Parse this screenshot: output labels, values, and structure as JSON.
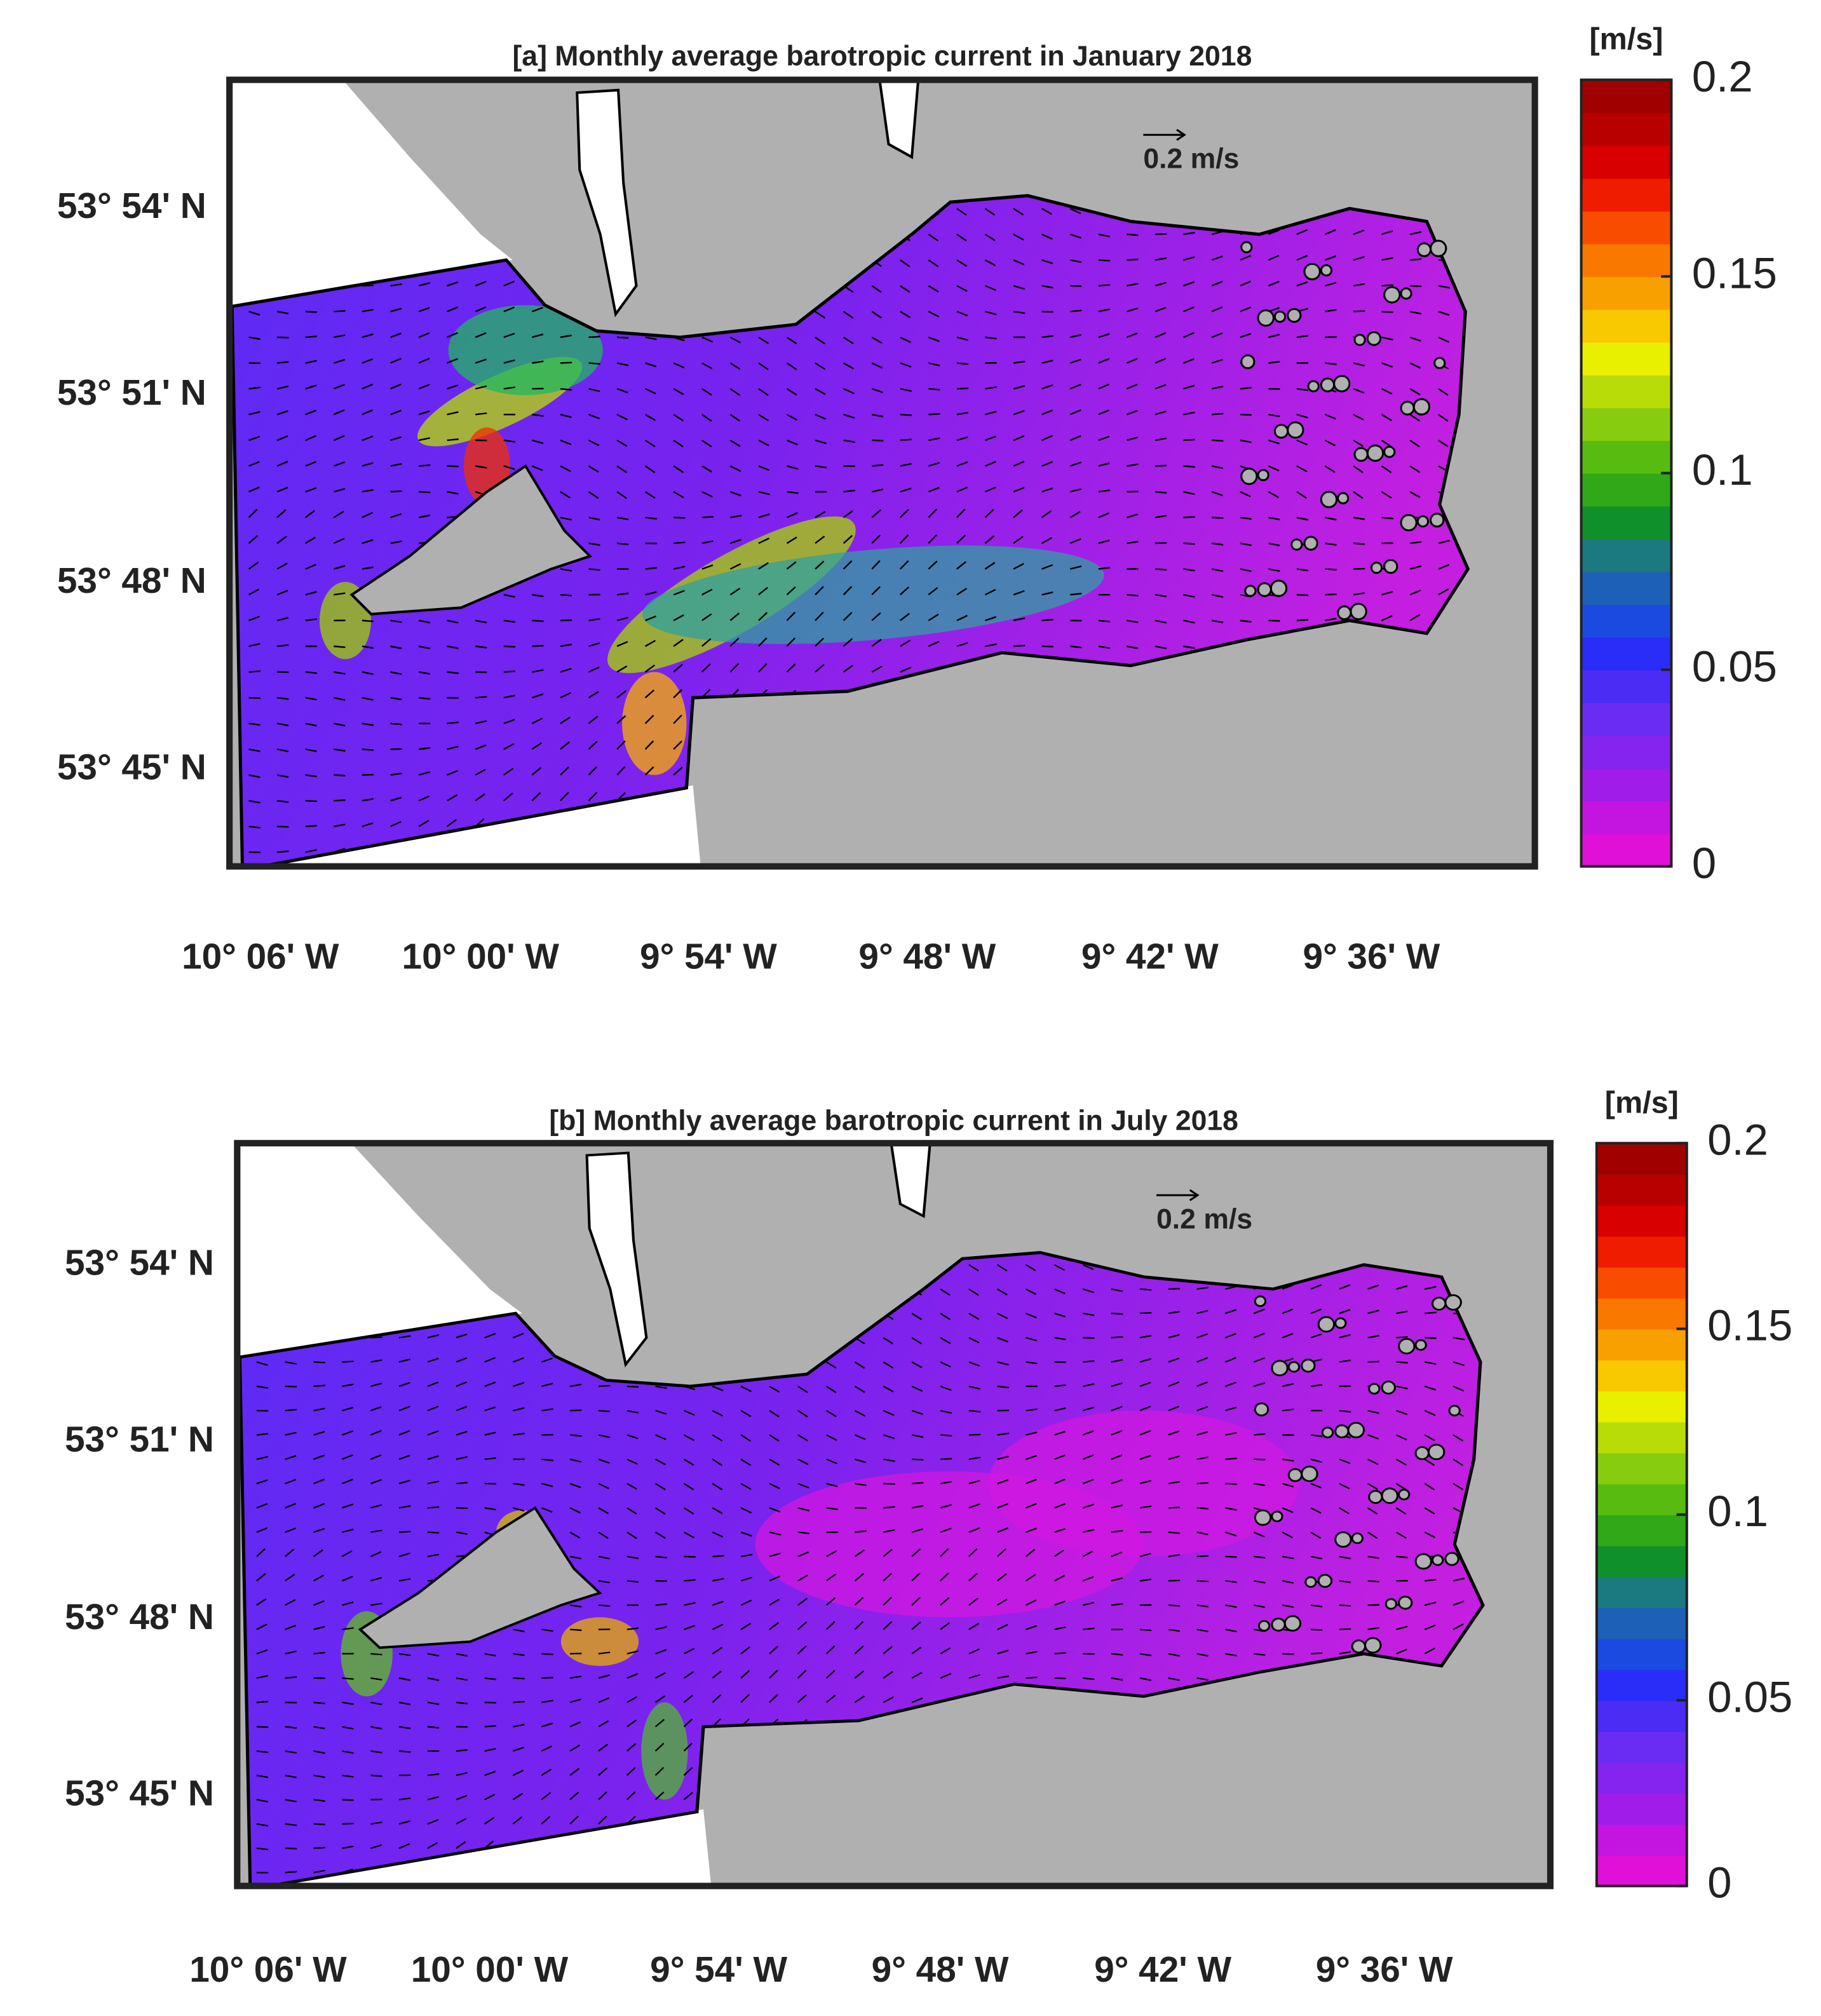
{
  "panels": [
    {
      "title": "[a] Monthly average barotropic current  in January 2018",
      "lat_labels": [
        "53° 54' N",
        "53° 51' N",
        "53° 48' N",
        "53° 45' N"
      ],
      "lon_labels": [
        "10° 06' W",
        "10° 00' W",
        "9° 54' W",
        "9° 48' W",
        "9° 42' W",
        "9° 36' W"
      ],
      "reference_arrow": "0.2 m/s",
      "colorbar": {
        "unit": "[m/s]",
        "lim": [
          0,
          0.2
        ],
        "ticks": [
          0,
          0.05,
          0.1,
          0.15,
          0.2
        ]
      }
    },
    {
      "title": "[b] Monthly average barotropic current  in July 2018",
      "lat_labels": [
        "53° 54' N",
        "53° 51' N",
        "53° 48' N",
        "53° 45' N"
      ],
      "lon_labels": [
        "10° 06' W",
        "10° 00' W",
        "9° 54' W",
        "9° 48' W",
        "9° 42' W",
        "9° 36' W"
      ],
      "reference_arrow": "0.2 m/s",
      "colorbar": {
        "unit": "[m/s]",
        "lim": [
          0,
          0.2
        ],
        "ticks": [
          0,
          0.05,
          0.1,
          0.15,
          0.2
        ]
      }
    }
  ]
}
